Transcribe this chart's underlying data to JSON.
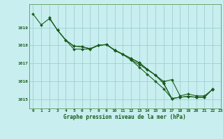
{
  "title": "Graphe pression niveau de la mer (hPa)",
  "background_color": "#c8eef0",
  "grid_color": "#9ecfcf",
  "line_color": "#1a5c1a",
  "xlim": [
    -0.5,
    23
  ],
  "ylim": [
    1014.5,
    1020.3
  ],
  "yticks": [
    1015,
    1016,
    1017,
    1018,
    1019
  ],
  "xticks": [
    0,
    1,
    2,
    3,
    4,
    5,
    6,
    7,
    8,
    9,
    10,
    11,
    12,
    13,
    14,
    15,
    16,
    17,
    18,
    19,
    20,
    21,
    22,
    23
  ],
  "s1_x": [
    0,
    1,
    2,
    3,
    4,
    5,
    6,
    7,
    8,
    9,
    10,
    11,
    12,
    13,
    14,
    15,
    16,
    17,
    18,
    19,
    20,
    21,
    22
  ],
  "s1_y": [
    1019.75,
    1019.15,
    1019.5,
    1018.85,
    1018.3,
    1017.8,
    1017.8,
    1017.8,
    1018.0,
    1018.05,
    1017.72,
    1017.5,
    1017.2,
    1016.95,
    1016.65,
    1016.35,
    1016.0,
    1016.1,
    1015.2,
    1015.3,
    1015.2,
    1015.2,
    1015.55
  ],
  "s2_x": [
    2,
    3,
    4,
    5,
    6,
    7,
    8,
    9,
    10,
    11,
    12,
    13,
    14,
    15,
    16,
    17,
    18,
    19,
    20,
    21,
    22
  ],
  "s2_y": [
    1019.55,
    1018.85,
    1018.3,
    1017.97,
    1017.93,
    1017.82,
    1018.02,
    1018.05,
    1017.75,
    1017.52,
    1017.28,
    1017.05,
    1016.68,
    1016.35,
    1015.9,
    1015.05,
    1015.12,
    1015.17,
    1015.12,
    1015.12,
    1015.58
  ],
  "s3_x": [
    3,
    4,
    5,
    6,
    7,
    8,
    9,
    10,
    11,
    12,
    13,
    14,
    15,
    16,
    17,
    18,
    19,
    20,
    21,
    22
  ],
  "s3_y": [
    1018.85,
    1018.3,
    1017.97,
    1017.93,
    1017.82,
    1018.02,
    1018.05,
    1017.75,
    1017.52,
    1017.28,
    1017.05,
    1016.68,
    1016.35,
    1015.9,
    1015.05,
    1015.12,
    1015.17,
    1015.12,
    1015.12,
    1015.58
  ],
  "s4_x": [
    12,
    13,
    14,
    15,
    16,
    17
  ],
  "s4_y": [
    1017.2,
    1016.8,
    1016.4,
    1016.0,
    1015.6,
    1015.05
  ]
}
